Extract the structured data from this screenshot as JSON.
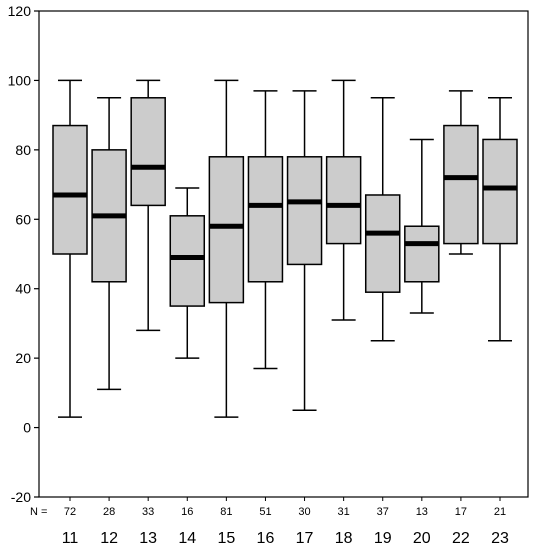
{
  "chart_data": {
    "type": "boxplot",
    "title": "",
    "xlabel": "",
    "ylabel": "",
    "ylim": [
      -20,
      120
    ],
    "yticks": [
      -20,
      0,
      20,
      40,
      60,
      80,
      100,
      120
    ],
    "grid": false,
    "n_prefix": "N =",
    "categories": [
      "11",
      "12",
      "13",
      "14",
      "15",
      "16",
      "17",
      "18",
      "19",
      "20",
      "22",
      "23"
    ],
    "n": [
      "72",
      "28",
      "33",
      "16",
      "81",
      "51",
      "30",
      "31",
      "37",
      "13",
      "17",
      "21"
    ],
    "boxes": [
      {
        "min": 3,
        "q1": 50,
        "median": 67,
        "q3": 87,
        "max": 100
      },
      {
        "min": 11,
        "q1": 42,
        "median": 61,
        "q3": 80,
        "max": 95
      },
      {
        "min": 28,
        "q1": 64,
        "median": 75,
        "q3": 95,
        "max": 100
      },
      {
        "min": 20,
        "q1": 35,
        "median": 49,
        "q3": 61,
        "max": 69
      },
      {
        "min": 3,
        "q1": 36,
        "median": 58,
        "q3": 78,
        "max": 100
      },
      {
        "min": 17,
        "q1": 42,
        "median": 64,
        "q3": 78,
        "max": 97
      },
      {
        "min": 5,
        "q1": 47,
        "median": 65,
        "q3": 78,
        "max": 97
      },
      {
        "min": 31,
        "q1": 53,
        "median": 64,
        "q3": 78,
        "max": 100
      },
      {
        "min": 25,
        "q1": 39,
        "median": 56,
        "q3": 67,
        "max": 95
      },
      {
        "min": 33,
        "q1": 42,
        "median": 53,
        "q3": 58,
        "max": 83
      },
      {
        "min": 50,
        "q1": 53,
        "median": 72,
        "q3": 87,
        "max": 97
      },
      {
        "min": 25,
        "q1": 53,
        "median": 69,
        "q3": 83,
        "max": 95
      }
    ],
    "box_fill": "#cccccc",
    "line_color": "#000000"
  }
}
